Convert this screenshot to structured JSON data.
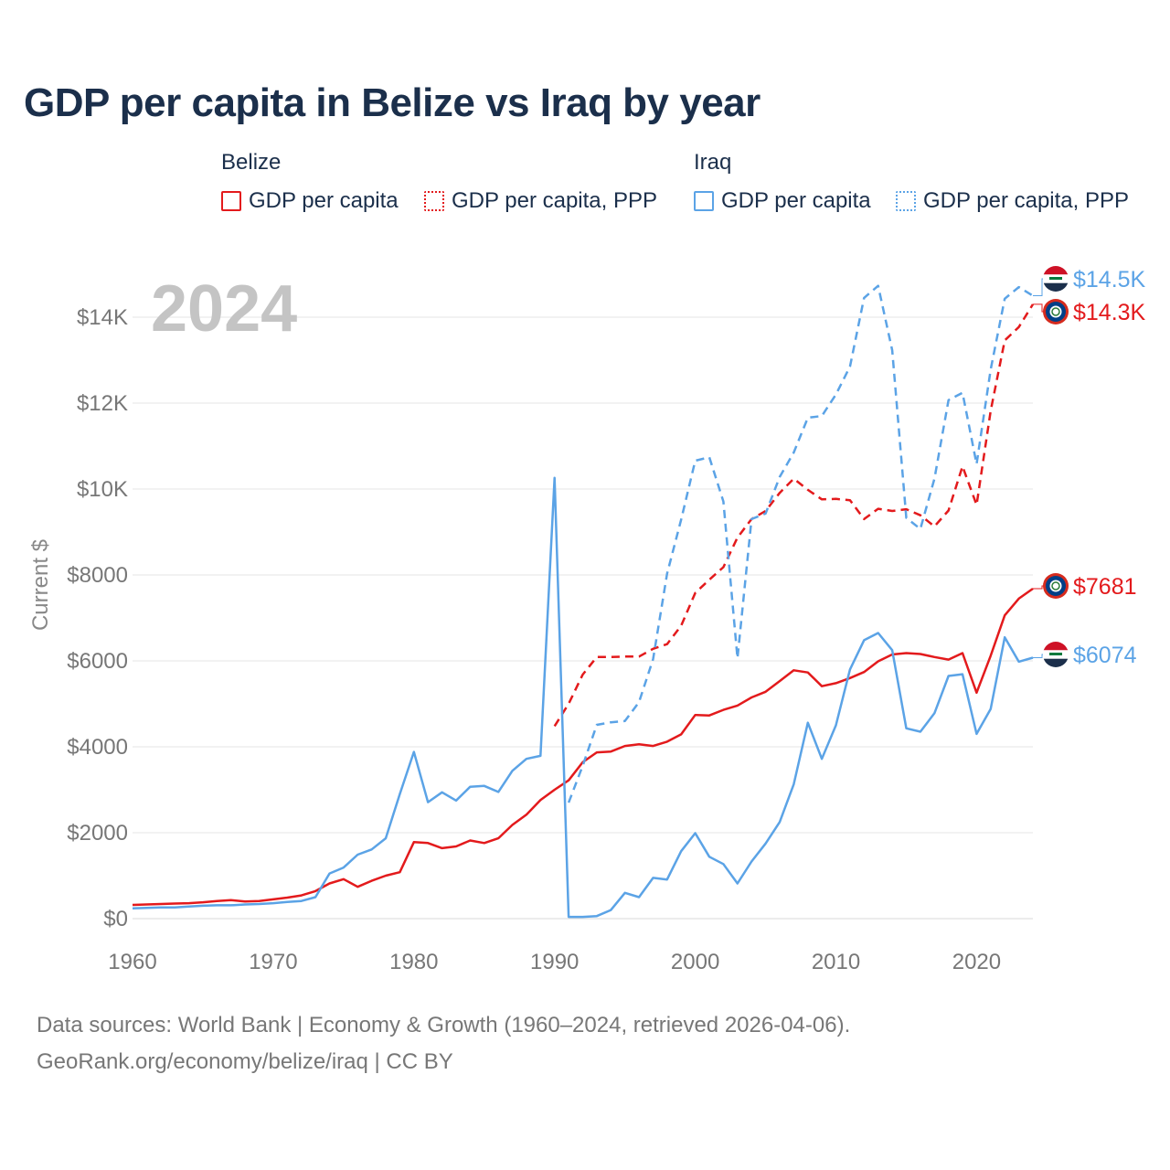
{
  "title": "GDP per capita in Belize vs Iraq by year",
  "legend": {
    "groups": [
      {
        "name": "Belize",
        "items": [
          {
            "label": "GDP per capita",
            "color": "#e31a1c",
            "style": "solid"
          },
          {
            "label": "GDP per capita, PPP",
            "color": "#e31a1c",
            "style": "dotted"
          }
        ]
      },
      {
        "name": "Iraq",
        "items": [
          {
            "label": "GDP per capita",
            "color": "#5ba3e6",
            "style": "solid"
          },
          {
            "label": "GDP per capita, PPP",
            "color": "#5ba3e6",
            "style": "dotted"
          }
        ]
      }
    ]
  },
  "chart_data": {
    "type": "line",
    "year_label": "2024",
    "ylabel": "Current $",
    "xlim": [
      1960,
      2024
    ],
    "ylim": [
      0,
      15000
    ],
    "x_ticks": [
      1960,
      1970,
      1980,
      1990,
      2000,
      2010,
      2020
    ],
    "y_ticks": [
      {
        "value": 0,
        "label": "$0"
      },
      {
        "value": 2000,
        "label": "$2000"
      },
      {
        "value": 4000,
        "label": "$4000"
      },
      {
        "value": 6000,
        "label": "$6000"
      },
      {
        "value": 8000,
        "label": "$8000"
      },
      {
        "value": 10000,
        "label": "$10K"
      },
      {
        "value": 12000,
        "label": "$12K"
      },
      {
        "value": 14000,
        "label": "$14K"
      }
    ],
    "gridlines": true,
    "series": [
      {
        "name": "Belize GDP per capita",
        "country": "Belize",
        "color": "#e31a1c",
        "dash": "solid",
        "start_year": 1960,
        "values": [
          320,
          330,
          340,
          350,
          360,
          380,
          410,
          430,
          400,
          410,
          450,
          490,
          540,
          640,
          820,
          920,
          740,
          880,
          1000,
          1080,
          1780,
          1760,
          1640,
          1680,
          1820,
          1760,
          1870,
          2180,
          2420,
          2760,
          3000,
          3220,
          3640,
          3870,
          3890,
          4020,
          4060,
          4020,
          4120,
          4290,
          4740,
          4730,
          4860,
          4960,
          5150,
          5280,
          5530,
          5780,
          5730,
          5410,
          5480,
          5600,
          5740,
          5990,
          6150,
          6180,
          6160,
          6090,
          6030,
          6180,
          5260,
          6120,
          7060,
          7450,
          7681
        ],
        "end_label": "$7681"
      },
      {
        "name": "Belize GDP per capita, PPP",
        "country": "Belize",
        "color": "#e31a1c",
        "dash": "dashed",
        "start_year": 1990,
        "values": [
          4480,
          5000,
          5680,
          6090,
          6090,
          6100,
          6100,
          6280,
          6390,
          6820,
          7580,
          7890,
          8180,
          8870,
          9300,
          9490,
          9910,
          10240,
          9980,
          9760,
          9770,
          9740,
          9300,
          9540,
          9490,
          9530,
          9390,
          9130,
          9500,
          10530,
          9630,
          11820,
          13460,
          13770,
          14300
        ],
        "end_label": "$14.3K"
      },
      {
        "name": "Iraq GDP per capita",
        "country": "Iraq",
        "color": "#5ba3e6",
        "dash": "solid",
        "start_year": 1960,
        "values": [
          240,
          250,
          260,
          260,
          280,
          300,
          310,
          310,
          330,
          340,
          360,
          390,
          410,
          500,
          1050,
          1190,
          1490,
          1610,
          1870,
          2900,
          3880,
          2710,
          2940,
          2750,
          3070,
          3090,
          2950,
          3440,
          3720,
          3790,
          10260,
          40,
          40,
          60,
          200,
          600,
          500,
          950,
          910,
          1570,
          1990,
          1440,
          1270,
          820,
          1330,
          1750,
          2250,
          3130,
          4560,
          3720,
          4500,
          5800,
          6480,
          6650,
          6250,
          4430,
          4350,
          4780,
          5650,
          5690,
          4300,
          4880,
          6550,
          5980,
          6074
        ],
        "end_label": "$6074"
      },
      {
        "name": "Iraq GDP per capita, PPP",
        "country": "Iraq",
        "color": "#5ba3e6",
        "dash": "dashed",
        "start_year": 1991,
        "values": [
          2700,
          3560,
          4510,
          4570,
          4600,
          5040,
          6040,
          8030,
          9290,
          10660,
          10740,
          9710,
          6060,
          9300,
          9430,
          10280,
          10850,
          11660,
          11700,
          12200,
          12850,
          14450,
          14730,
          13230,
          9330,
          9070,
          10240,
          12070,
          12240,
          10580,
          12780,
          14430,
          14700,
          14500
        ],
        "end_label": "$14.5K"
      }
    ]
  },
  "footer": {
    "line1": "Data sources: World Bank | Economy & Growth (1960–2024, retrieved 2026-04-06).",
    "line2": "GeoRank.org/economy/belize/iraq | CC BY"
  }
}
